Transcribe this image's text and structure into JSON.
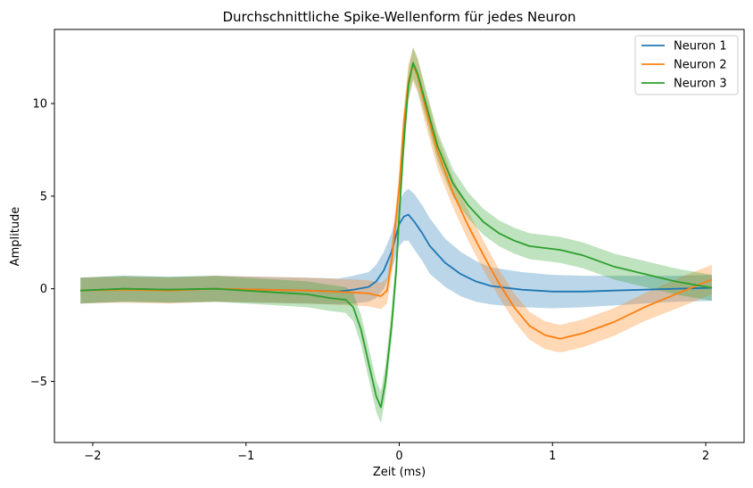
{
  "chart_data": {
    "type": "line",
    "title": "Durchschnittliche Spike-Wellenform für jedes Neuron",
    "xlabel": "Zeit (ms)",
    "ylabel": "Amplitude",
    "xlim": [
      -2.25,
      2.25
    ],
    "ylim": [
      -8.3,
      14.0
    ],
    "xticks": [
      -2,
      -1,
      0,
      1,
      2
    ],
    "xtick_labels": [
      "−2",
      "−1",
      "0",
      "1",
      "2"
    ],
    "yticks": [
      -5,
      0,
      5,
      10
    ],
    "ytick_labels": [
      "−5",
      "0",
      "5",
      "10"
    ],
    "grid": false,
    "legend_position": "top-right",
    "series": [
      {
        "name": "Neuron 1",
        "color": "#1f77b4",
        "x": [
          -2.08,
          -1.8,
          -1.5,
          -1.2,
          -0.9,
          -0.6,
          -0.4,
          -0.3,
          -0.2,
          -0.15,
          -0.1,
          -0.05,
          0.0,
          0.03,
          0.06,
          0.1,
          0.15,
          0.2,
          0.3,
          0.4,
          0.5,
          0.6,
          0.8,
          1.0,
          1.2,
          1.4,
          1.6,
          1.8,
          2.04
        ],
        "y": [
          -0.1,
          0.0,
          -0.05,
          0.0,
          -0.05,
          -0.1,
          -0.15,
          -0.05,
          0.1,
          0.4,
          1.0,
          2.0,
          3.5,
          3.9,
          4.0,
          3.6,
          3.0,
          2.3,
          1.4,
          0.8,
          0.4,
          0.15,
          -0.05,
          -0.15,
          -0.15,
          -0.1,
          -0.05,
          0.0,
          0.05
        ],
        "band": [
          0.7,
          0.7,
          0.7,
          0.7,
          0.7,
          0.7,
          0.7,
          0.75,
          0.8,
          0.9,
          1.0,
          1.0,
          1.2,
          1.3,
          1.4,
          1.5,
          1.5,
          1.5,
          1.3,
          1.2,
          1.1,
          1.0,
          0.95,
          0.9,
          0.85,
          0.8,
          0.75,
          0.7,
          0.7
        ]
      },
      {
        "name": "Neuron 2",
        "color": "#ff7f0e",
        "x": [
          -2.08,
          -1.8,
          -1.5,
          -1.2,
          -0.9,
          -0.6,
          -0.45,
          -0.3,
          -0.2,
          -0.12,
          -0.08,
          -0.05,
          0.0,
          0.03,
          0.06,
          0.09,
          0.12,
          0.18,
          0.25,
          0.35,
          0.45,
          0.55,
          0.65,
          0.75,
          0.85,
          0.95,
          1.05,
          1.2,
          1.4,
          1.6,
          1.8,
          2.04
        ],
        "y": [
          -0.1,
          -0.05,
          -0.1,
          0.0,
          -0.05,
          -0.1,
          -0.15,
          -0.2,
          -0.25,
          -0.4,
          -0.1,
          1.5,
          5.5,
          9.0,
          11.2,
          12.1,
          11.5,
          9.5,
          7.4,
          5.2,
          3.4,
          1.8,
          0.3,
          -1.0,
          -2.0,
          -2.5,
          -2.7,
          -2.4,
          -1.8,
          -1.0,
          -0.3,
          0.5
        ],
        "band": [
          0.7,
          0.7,
          0.7,
          0.7,
          0.7,
          0.7,
          0.7,
          0.7,
          0.7,
          0.7,
          0.7,
          0.8,
          0.8,
          0.8,
          0.9,
          0.9,
          0.9,
          0.9,
          0.9,
          0.8,
          0.8,
          0.8,
          0.75,
          0.75,
          0.75,
          0.75,
          0.75,
          0.75,
          0.75,
          0.75,
          0.8,
          0.8
        ]
      },
      {
        "name": "Neuron 3",
        "color": "#2ca02c",
        "x": [
          -2.08,
          -1.8,
          -1.5,
          -1.2,
          -0.9,
          -0.6,
          -0.45,
          -0.35,
          -0.3,
          -0.25,
          -0.2,
          -0.15,
          -0.12,
          -0.09,
          -0.05,
          -0.02,
          0.0,
          0.03,
          0.06,
          0.09,
          0.12,
          0.18,
          0.25,
          0.35,
          0.45,
          0.55,
          0.65,
          0.75,
          0.85,
          0.95,
          1.05,
          1.2,
          1.4,
          1.6,
          1.8,
          2.04
        ],
        "y": [
          -0.1,
          0.0,
          -0.05,
          0.0,
          -0.15,
          -0.3,
          -0.5,
          -0.6,
          -1.0,
          -2.2,
          -4.0,
          -5.8,
          -6.4,
          -5.0,
          -2.0,
          1.0,
          4.0,
          8.0,
          11.0,
          12.2,
          11.6,
          9.8,
          7.7,
          5.7,
          4.5,
          3.6,
          3.0,
          2.6,
          2.3,
          2.2,
          2.1,
          1.8,
          1.2,
          0.8,
          0.4,
          0.05
        ],
        "band": [
          0.7,
          0.7,
          0.7,
          0.7,
          0.7,
          0.7,
          0.7,
          0.7,
          0.75,
          0.8,
          0.85,
          0.85,
          0.85,
          0.85,
          0.85,
          0.85,
          0.85,
          0.85,
          0.85,
          0.85,
          0.85,
          0.8,
          0.8,
          0.75,
          0.7,
          0.7,
          0.7,
          0.7,
          0.7,
          0.7,
          0.7,
          0.7,
          0.7,
          0.7,
          0.7,
          0.7
        ]
      }
    ]
  }
}
